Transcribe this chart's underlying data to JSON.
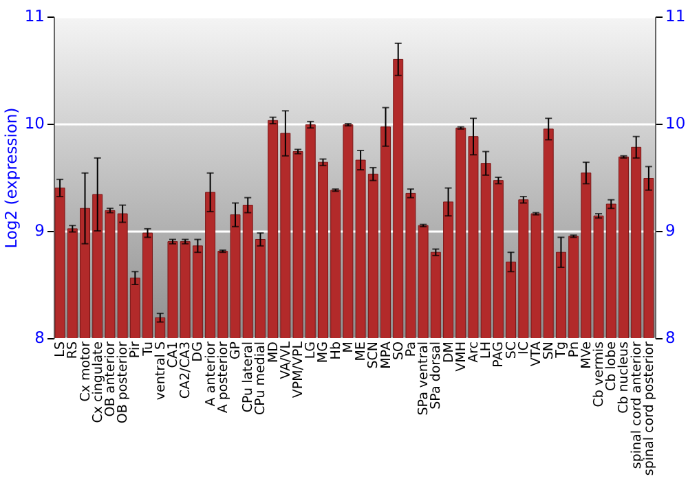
{
  "chart_data": {
    "type": "bar",
    "ylabel": "Log2 (expression)",
    "categories": [
      "LS",
      "RS",
      "Cx motor",
      "Cx cingulate",
      "OB anterior",
      "OB posterior",
      "Pir",
      "Tu",
      "ventral S",
      "CA1",
      "CA2/CA3",
      "DG",
      "A anterior",
      "A posterior",
      "GP",
      "CPu lateral",
      "CPu medial",
      "MD",
      "VA/VL",
      "VPM/VPL",
      "LG",
      "MG",
      "Hb",
      "M",
      "ME",
      "SCN",
      "MPA",
      "SO",
      "Pa",
      "SPa ventral",
      "SPa dorsal",
      "DM",
      "VMH",
      "Arc",
      "LH",
      "PAG",
      "SC",
      "IC",
      "VTA",
      "SN",
      "Tg",
      "Pn",
      "MVe",
      "Cb vermis",
      "Cb lobe",
      "Cb nucleus",
      "spinal cord anterior",
      "spinal cord posterior"
    ],
    "values": [
      9.4,
      9.02,
      9.21,
      9.34,
      9.19,
      9.16,
      8.56,
      8.98,
      8.19,
      8.9,
      8.9,
      8.86,
      9.36,
      8.81,
      9.15,
      9.24,
      8.92,
      10.03,
      9.91,
      9.74,
      9.99,
      9.64,
      9.38,
      9.99,
      9.66,
      9.53,
      9.97,
      10.6,
      9.35,
      9.05,
      8.8,
      9.27,
      9.96,
      9.88,
      9.63,
      9.47,
      8.71,
      9.29,
      9.16,
      9.95,
      8.8,
      8.95,
      9.54,
      9.14,
      9.25,
      9.69,
      9.78,
      9.49
    ],
    "errors": [
      0.08,
      0.03,
      0.33,
      0.34,
      0.02,
      0.08,
      0.06,
      0.04,
      0.04,
      0.02,
      0.02,
      0.06,
      0.18,
      0.01,
      0.11,
      0.07,
      0.06,
      0.03,
      0.21,
      0.02,
      0.03,
      0.03,
      0.01,
      0.01,
      0.09,
      0.06,
      0.18,
      0.15,
      0.04,
      0.01,
      0.03,
      0.13,
      0.01,
      0.17,
      0.11,
      0.03,
      0.09,
      0.03,
      0.01,
      0.1,
      0.14,
      0.01,
      0.1,
      0.02,
      0.04,
      0.01,
      0.1,
      0.11
    ],
    "color": "#b22a2a",
    "ylim": [
      8,
      11
    ],
    "yticks": [
      8,
      9,
      10,
      11
    ],
    "y2lim": [
      8,
      11
    ],
    "y2ticks": [
      8,
      9,
      10,
      11
    ],
    "grid": "y"
  }
}
